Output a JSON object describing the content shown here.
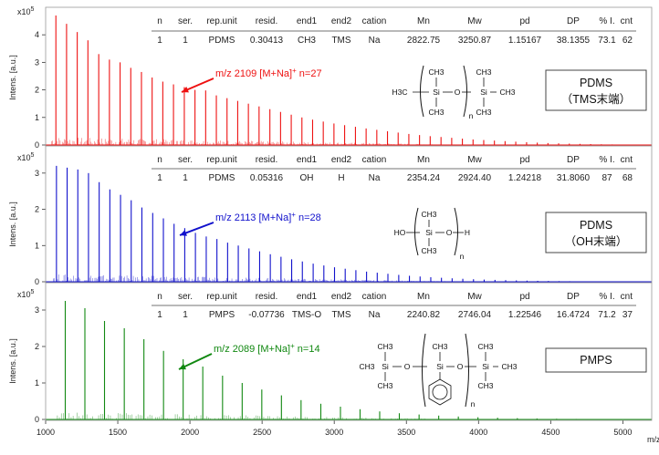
{
  "figure": {
    "x_axis_label": "m/z",
    "y_axis_label": "Intens. [a.u.]",
    "x_ticks": [
      "1000",
      "1500",
      "2000",
      "2500",
      "3000",
      "3500",
      "4000",
      "4500",
      "5000"
    ]
  },
  "table_headers": [
    "n",
    "ser.",
    "rep.unit",
    "resid.",
    "end1",
    "end2",
    "cation",
    "Mn",
    "Mw",
    "pd",
    "DP",
    "% I.",
    "cnt"
  ],
  "panels": [
    {
      "color": "#ee1111",
      "y_exponent": "x10",
      "y_exponent_sup": "5",
      "y_ticks": [
        "0",
        "1",
        "2",
        "3",
        "4"
      ],
      "table_row": [
        "1",
        "1",
        "PDMS",
        "0.30413",
        "CH3",
        "TMS",
        "Na",
        "2822.75",
        "3250.87",
        "1.15167",
        "38.1355",
        "73.1",
        "62"
      ],
      "annotation": {
        "main": "m/z 2109  [M+Na]",
        "sup": "+",
        "tail": "  n=27"
      },
      "label_line1": "PDMS",
      "label_line2": "（TMS末端）",
      "chem": {
        "left": "H3C",
        "si1": "Si",
        "o": "O",
        "si2": "Si",
        "me": "CH3",
        "n": "n"
      }
    },
    {
      "color": "#1111cc",
      "y_exponent": "x10",
      "y_exponent_sup": "5",
      "y_ticks": [
        "0",
        "1",
        "2",
        "3"
      ],
      "table_row": [
        "1",
        "1",
        "PDMS",
        "0.05316",
        "OH",
        "H",
        "Na",
        "2354.24",
        "2924.40",
        "1.24218",
        "31.8060",
        "87",
        "68"
      ],
      "annotation": {
        "main": "m/z 2113  [M+Na]",
        "sup": "+",
        "tail": "  n=28"
      },
      "label_line1": "PDMS",
      "label_line2": "（OH末端）",
      "chem": {
        "left": "HO",
        "si1": "Si",
        "o": "O",
        "right": "H",
        "me": "CH3",
        "n": "n"
      }
    },
    {
      "color": "#118811",
      "y_exponent": "x10",
      "y_exponent_sup": "5",
      "y_ticks": [
        "0",
        "1",
        "2",
        "3"
      ],
      "table_row": [
        "1",
        "1",
        "PMPS",
        "-0.07736",
        "TMS-O",
        "TMS",
        "Na",
        "2240.82",
        "2746.04",
        "1.22546",
        "16.4724",
        "71.2",
        "37"
      ],
      "annotation": {
        "main": "m/z 2089  [M+Na]",
        "sup": "+",
        "tail": "  n=14"
      },
      "label_line1": "PMPS",
      "label_line2": "",
      "chem": {
        "si1": "Si",
        "o": "O",
        "si2": "Si",
        "si3": "Si",
        "me": "CH3",
        "n": "n"
      }
    }
  ],
  "chart_data": [
    {
      "type": "bar",
      "title": "PDMS (TMS末端)",
      "xlabel": "m/z",
      "ylabel": "Intens. [a.u.]",
      "xlim": [
        1000,
        5200
      ],
      "ylim": [
        0,
        480000
      ],
      "series_color": "#ee1111",
      "repeat_unit": 74.1,
      "x": [
        1071,
        1145,
        1219,
        1293,
        1368,
        1442,
        1516,
        1590,
        1664,
        1738,
        1812,
        1886,
        1961,
        2035,
        2109,
        2183,
        2257,
        2331,
        2405,
        2479,
        2554,
        2628,
        2702,
        2776,
        2850,
        2924,
        2998,
        3072,
        3147,
        3221,
        3295,
        3369,
        3443,
        3517,
        3591,
        3665,
        3740,
        3814,
        3888,
        3962,
        4036,
        4110,
        4184,
        4258,
        4333,
        4407,
        4481,
        4555,
        4629,
        4703,
        4777,
        4851,
        4926,
        5000,
        5074,
        5148
      ],
      "values": [
        470000,
        440000,
        410000,
        380000,
        330000,
        310000,
        300000,
        280000,
        265000,
        245000,
        230000,
        220000,
        210000,
        200000,
        198000,
        180000,
        170000,
        160000,
        150000,
        140000,
        130000,
        120000,
        110000,
        100000,
        92000,
        85000,
        78000,
        72000,
        66000,
        60000,
        55000,
        50000,
        45000,
        40000,
        36000,
        32000,
        29000,
        26000,
        23000,
        20000,
        18000,
        16000,
        14000,
        12000,
        10000,
        8500,
        7000,
        6000,
        5000,
        4000,
        3200,
        2500,
        2000,
        1500,
        1200,
        900
      ]
    },
    {
      "type": "bar",
      "title": "PDMS (OH末端)",
      "xlabel": "m/z",
      "ylabel": "Intens. [a.u.]",
      "xlim": [
        1000,
        5200
      ],
      "ylim": [
        0,
        360000
      ],
      "series_color": "#1111cc",
      "repeat_unit": 74.1,
      "x": [
        1075,
        1149,
        1223,
        1297,
        1371,
        1445,
        1519,
        1593,
        1667,
        1742,
        1816,
        1890,
        1964,
        2038,
        2113,
        2187,
        2261,
        2335,
        2409,
        2483,
        2557,
        2631,
        2705,
        2779,
        2854,
        2928,
        3002,
        3076,
        3150,
        3224,
        3298,
        3372,
        3447,
        3521,
        3595,
        3669,
        3743,
        3817,
        3891,
        3965,
        4039,
        4114,
        4188,
        4262,
        4336,
        4410,
        4484,
        4558,
        4632,
        4706,
        4781,
        4855,
        4929,
        5003,
        5077,
        5151
      ],
      "values": [
        320000,
        315000,
        310000,
        300000,
        275000,
        255000,
        240000,
        225000,
        205000,
        190000,
        175000,
        160000,
        148000,
        135000,
        125000,
        118000,
        108000,
        100000,
        92000,
        84000,
        76000,
        69000,
        62000,
        56000,
        50000,
        45000,
        40000,
        36000,
        32000,
        28000,
        25000,
        22000,
        19000,
        16500,
        14500,
        12500,
        11000,
        9500,
        8200,
        7000,
        6000,
        5200,
        4400,
        3700,
        3100,
        2600,
        2200,
        1800,
        1500,
        1200,
        1000,
        800,
        650,
        500,
        400,
        300
      ]
    },
    {
      "type": "bar",
      "title": "PMPS",
      "xlabel": "m/z",
      "ylabel": "Intens. [a.u.]",
      "xlim": [
        1000,
        5200
      ],
      "ylim": [
        0,
        360000
      ],
      "series_color": "#118811",
      "repeat_unit": 136.2,
      "x": [
        1136,
        1272,
        1408,
        1545,
        1681,
        1817,
        1953,
        2089,
        2226,
        2362,
        2498,
        2634,
        2770,
        2907,
        3043,
        3179,
        3315,
        3451,
        3588,
        3724,
        3860,
        3996,
        4132,
        4269,
        4405,
        4541,
        4677,
        4813,
        4950,
        5086
      ],
      "values": [
        325000,
        305000,
        270000,
        250000,
        220000,
        188000,
        165000,
        145000,
        120000,
        100000,
        82000,
        66000,
        53000,
        43000,
        35000,
        28000,
        22000,
        17000,
        13500,
        10500,
        8000,
        6000,
        4600,
        3500,
        2600,
        1900,
        1400,
        1000,
        700,
        500
      ]
    }
  ]
}
